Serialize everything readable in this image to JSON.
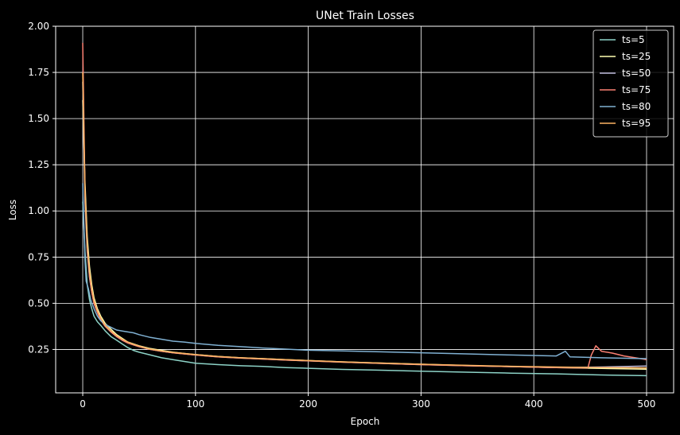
{
  "chart_data": {
    "type": "line",
    "title": "UNet Train Losses",
    "xlabel": "Epoch",
    "ylabel": "Loss",
    "xlim": [
      -24,
      524
    ],
    "ylim": [
      0.015,
      2.0
    ],
    "xticks": [
      0,
      100,
      200,
      300,
      400,
      500
    ],
    "yticks": [
      0.25,
      0.5,
      0.75,
      1.0,
      1.25,
      1.5,
      1.75,
      2.0
    ],
    "xtick_labels": [
      "0",
      "100",
      "200",
      "300",
      "400",
      "500"
    ],
    "ytick_labels": [
      "0.25",
      "0.50",
      "0.75",
      "1.00",
      "1.25",
      "1.50",
      "1.75",
      "2.00"
    ],
    "grid": true,
    "legend_position": "top-right",
    "background": "#000000",
    "series": [
      {
        "name": "ts=5",
        "color": "#8dd3c7",
        "x": [
          0,
          2,
          4,
          6,
          8,
          10,
          13,
          16,
          20,
          25,
          30,
          35,
          40,
          45,
          50,
          60,
          70,
          80,
          90,
          100,
          120,
          140,
          160,
          180,
          200,
          230,
          260,
          300,
          340,
          380,
          420,
          460,
          500
        ],
        "y": [
          1.05,
          0.78,
          0.6,
          0.52,
          0.47,
          0.43,
          0.4,
          0.38,
          0.35,
          0.32,
          0.3,
          0.28,
          0.26,
          0.245,
          0.235,
          0.22,
          0.205,
          0.195,
          0.185,
          0.175,
          0.168,
          0.162,
          0.158,
          0.152,
          0.148,
          0.142,
          0.138,
          0.132,
          0.127,
          0.122,
          0.118,
          0.112,
          0.108
        ]
      },
      {
        "name": "ts=25",
        "color": "#ffffb3",
        "x": [
          0,
          2,
          4,
          6,
          8,
          10,
          13,
          16,
          20,
          25,
          30,
          35,
          40,
          45,
          50,
          60,
          70,
          80,
          90,
          100,
          120,
          140,
          160,
          180,
          200,
          230,
          260,
          300,
          340,
          380,
          420,
          460,
          500
        ],
        "y": [
          1.6,
          1.15,
          0.86,
          0.7,
          0.6,
          0.53,
          0.47,
          0.43,
          0.39,
          0.36,
          0.33,
          0.31,
          0.29,
          0.28,
          0.27,
          0.255,
          0.245,
          0.235,
          0.228,
          0.222,
          0.212,
          0.205,
          0.2,
          0.195,
          0.19,
          0.183,
          0.177,
          0.17,
          0.163,
          0.157,
          0.152,
          0.147,
          0.143
        ]
      },
      {
        "name": "ts=50",
        "color": "#bebada",
        "x": [
          0,
          2,
          4,
          6,
          8,
          10,
          13,
          16,
          20,
          25,
          30,
          35,
          40,
          45,
          50,
          60,
          70,
          80,
          90,
          100,
          120,
          140,
          160,
          180,
          200,
          230,
          260,
          300,
          340,
          380,
          420,
          460,
          500
        ],
        "y": [
          1.7,
          1.05,
          0.78,
          0.64,
          0.56,
          0.5,
          0.45,
          0.41,
          0.375,
          0.345,
          0.32,
          0.3,
          0.285,
          0.275,
          0.265,
          0.25,
          0.24,
          0.232,
          0.226,
          0.22,
          0.21,
          0.203,
          0.198,
          0.193,
          0.188,
          0.181,
          0.175,
          0.168,
          0.162,
          0.157,
          0.152,
          0.155,
          0.16
        ]
      },
      {
        "name": "ts=75",
        "color": "#fb8072",
        "x": [
          0,
          2,
          4,
          6,
          8,
          10,
          13,
          16,
          20,
          25,
          30,
          35,
          40,
          45,
          50,
          60,
          70,
          80,
          90,
          100,
          120,
          140,
          160,
          180,
          200,
          230,
          260,
          300,
          340,
          380,
          420,
          448,
          451,
          455,
          460,
          470,
          480,
          490,
          500
        ],
        "y": [
          1.91,
          1.1,
          0.8,
          0.65,
          0.56,
          0.5,
          0.45,
          0.41,
          0.375,
          0.345,
          0.32,
          0.3,
          0.285,
          0.275,
          0.265,
          0.25,
          0.24,
          0.232,
          0.226,
          0.22,
          0.21,
          0.203,
          0.198,
          0.193,
          0.188,
          0.181,
          0.175,
          0.168,
          0.162,
          0.157,
          0.152,
          0.15,
          0.22,
          0.27,
          0.24,
          0.23,
          0.215,
          0.205,
          0.195
        ]
      },
      {
        "name": "ts=80",
        "color": "#80b1d3",
        "x": [
          0,
          2,
          3,
          5,
          7,
          10,
          13,
          16,
          20,
          25,
          30,
          35,
          40,
          45,
          50,
          60,
          70,
          80,
          90,
          100,
          120,
          140,
          160,
          180,
          200,
          230,
          260,
          300,
          340,
          380,
          420,
          428,
          432,
          460,
          500
        ],
        "y": [
          1.15,
          0.73,
          0.62,
          0.58,
          0.52,
          0.47,
          0.43,
          0.405,
          0.385,
          0.37,
          0.355,
          0.35,
          0.345,
          0.34,
          0.33,
          0.315,
          0.305,
          0.295,
          0.29,
          0.283,
          0.272,
          0.265,
          0.258,
          0.252,
          0.246,
          0.242,
          0.238,
          0.232,
          0.226,
          0.22,
          0.215,
          0.24,
          0.21,
          0.205,
          0.2
        ]
      },
      {
        "name": "ts=95",
        "color": "#fdb462",
        "x": [
          0,
          2,
          4,
          6,
          8,
          10,
          13,
          16,
          20,
          25,
          30,
          35,
          40,
          45,
          50,
          60,
          70,
          80,
          90,
          100,
          120,
          140,
          160,
          180,
          200,
          230,
          260,
          300,
          340,
          380,
          420,
          460,
          500
        ],
        "y": [
          1.75,
          1.1,
          0.82,
          0.67,
          0.58,
          0.515,
          0.46,
          0.42,
          0.38,
          0.35,
          0.325,
          0.305,
          0.29,
          0.278,
          0.268,
          0.252,
          0.242,
          0.234,
          0.228,
          0.222,
          0.212,
          0.205,
          0.2,
          0.195,
          0.19,
          0.183,
          0.177,
          0.17,
          0.164,
          0.159,
          0.155,
          0.152,
          0.15
        ]
      }
    ]
  }
}
